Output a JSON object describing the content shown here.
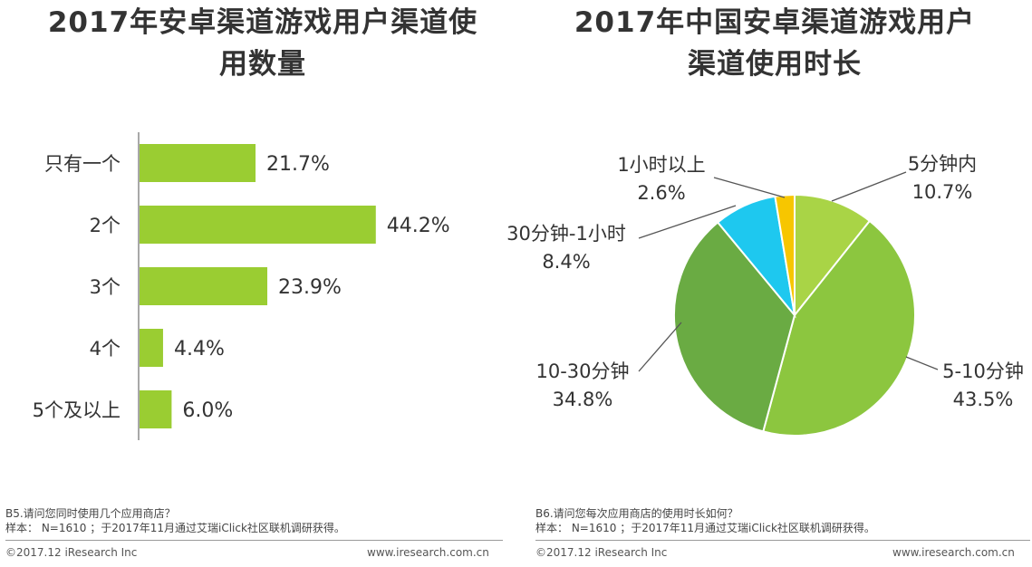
{
  "left": {
    "title_line1": "2017年安卓渠道游戏用户渠道使",
    "title_line2": "用数量",
    "note_question": "B5.请问您同时使用几个应用商店？",
    "note_sample": "样本： N=1610 ；于2017年11月通过艾瑞iClick社区联机调研获得。",
    "copyright": "©2017.12 iResearch Inc",
    "website": "www.iresearch.com.cn"
  },
  "right": {
    "title_line1": "2017年中国安卓渠道游戏用户",
    "title_line2": "渠道使用时长",
    "note_question": "B6.请问您每次应用商店的使用时长如何？",
    "note_sample": "样本： N=1610 ；于2017年11月通过艾瑞iClick社区联机调研获得。",
    "copyright": "©2017.12 iResearch Inc",
    "website": "www.iresearch.com.cn"
  },
  "chart_data": [
    {
      "type": "bar",
      "orientation": "horizontal",
      "categories": [
        "只有一个",
        "2个",
        "3个",
        "4个",
        "5个及以上"
      ],
      "values": [
        21.7,
        44.2,
        23.9,
        4.4,
        6.0
      ],
      "value_labels": [
        "21.7%",
        "44.2%",
        "23.9%",
        "4.4%",
        "6.0%"
      ],
      "unit": "%",
      "color": "#9acd32",
      "xlim": [
        0,
        50
      ]
    },
    {
      "type": "pie",
      "labels": [
        "5分钟内",
        "5-10分钟",
        "10-30分钟",
        "30分钟-1小时",
        "1小时以上"
      ],
      "values": [
        10.7,
        43.5,
        34.8,
        8.4,
        2.6
      ],
      "value_labels": [
        "10.7%",
        "43.5%",
        "34.8%",
        "8.4%",
        "2.6%"
      ],
      "colors": [
        "#a9d446",
        "#8cc63f",
        "#6aab43",
        "#1ec8ef",
        "#f7c600"
      ],
      "start": "top",
      "direction": "clockwise"
    }
  ]
}
